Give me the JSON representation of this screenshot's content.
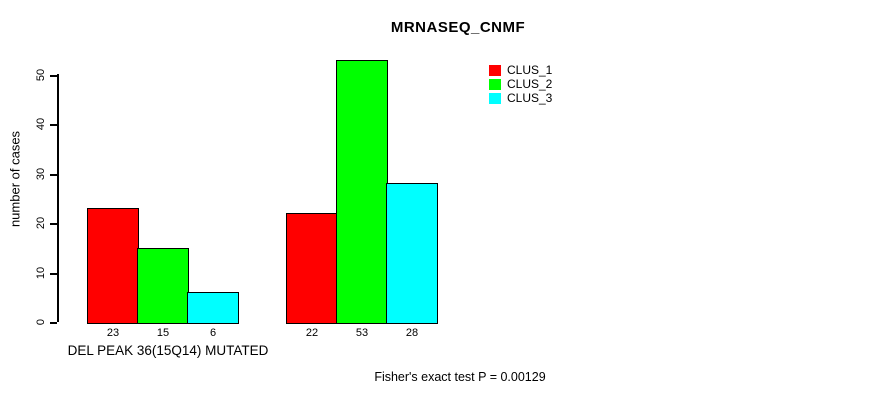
{
  "title": "MRNASEQ_CNMF",
  "footer": "Fisher's exact test P = 0.00129",
  "axes": {
    "ylabel": "number of cases",
    "xlabel": "DEL PEAK 36(15Q14) MUTATED",
    "ytick_labels": [
      "0",
      "10",
      "20",
      "30",
      "40",
      "50"
    ]
  },
  "legend": {
    "position": "top-right",
    "items": [
      {
        "label": "CLUS_1",
        "color": "#FF0000"
      },
      {
        "label": "CLUS_2",
        "color": "#00FF00"
      },
      {
        "label": "CLUS_3",
        "color": "#00FFFF"
      }
    ]
  },
  "chart_data": {
    "type": "bar",
    "title": "MRNASEQ_CNMF",
    "xlabel": "DEL PEAK 36(15Q14) MUTATED",
    "ylabel": "number of cases",
    "annotation": "Fisher's exact test P = 0.00129",
    "group_count": 2,
    "series": [
      {
        "name": "CLUS_1",
        "color": "#FF0000",
        "values": [
          23,
          22
        ]
      },
      {
        "name": "CLUS_2",
        "color": "#00FF00",
        "values": [
          15,
          53
        ]
      },
      {
        "name": "CLUS_3",
        "color": "#00FFFF",
        "values": [
          6,
          28
        ]
      }
    ],
    "bar_value_labels": [
      [
        23,
        15,
        6
      ],
      [
        22,
        53,
        28
      ]
    ],
    "yticks": [
      0,
      10,
      20,
      30,
      40,
      50
    ],
    "ylim": [
      0,
      53
    ],
    "grid": false,
    "legend_position": "top-right",
    "bar_outline_color": "#000000"
  }
}
